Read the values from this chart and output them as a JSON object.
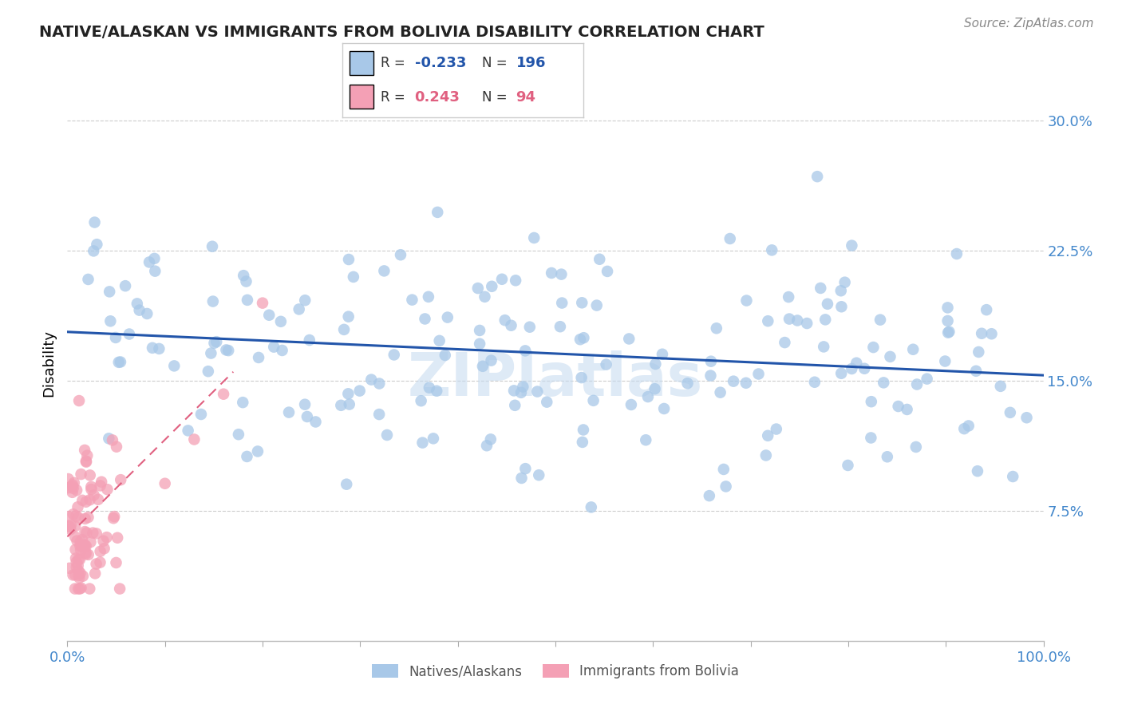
{
  "title": "NATIVE/ALASKAN VS IMMIGRANTS FROM BOLIVIA DISABILITY CORRELATION CHART",
  "source": "Source: ZipAtlas.com",
  "ylabel": "Disability",
  "blue_label": "Natives/Alaskans",
  "pink_label": "Immigrants from Bolivia",
  "blue_R": -0.233,
  "blue_N": 196,
  "pink_R": 0.243,
  "pink_N": 94,
  "blue_color": "#A8C8E8",
  "pink_color": "#F4A0B5",
  "blue_line_color": "#2255AA",
  "pink_line_color": "#E06080",
  "title_color": "#222222",
  "axis_label_color": "#4488CC",
  "watermark_color": "#C8DCF0",
  "xlim": [
    0,
    1.0
  ],
  "ylim": [
    0,
    0.32
  ],
  "yticks": [
    0.075,
    0.15,
    0.225,
    0.3
  ],
  "ytick_labels": [
    "7.5%",
    "15.0%",
    "22.5%",
    "30.0%"
  ],
  "blue_line_x0": 0.0,
  "blue_line_x1": 1.0,
  "blue_line_y0": 0.178,
  "blue_line_y1": 0.153,
  "pink_line_x0": 0.0,
  "pink_line_x1": 0.17,
  "pink_line_y0": 0.06,
  "pink_line_y1": 0.155
}
